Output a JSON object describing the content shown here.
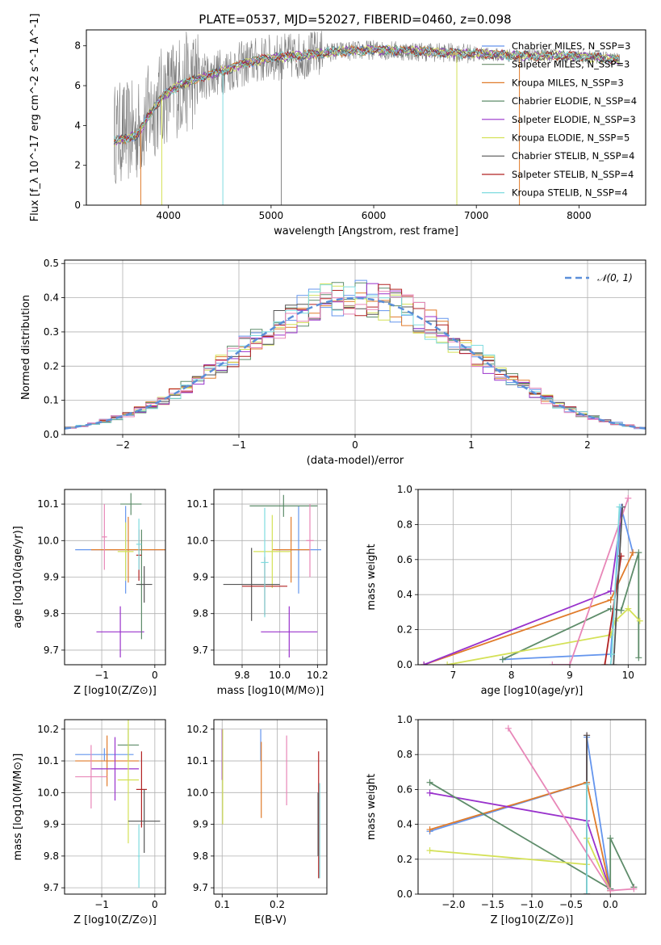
{
  "figure": {
    "title": "PLATE=0537, MJD=52027, FIBERID=0460, z=0.098"
  },
  "chart_data": [
    {
      "id": "spectrum",
      "type": "line",
      "xlabel": "wavelength [Angstrom, rest frame]",
      "ylabel": "Flux [f_λ 10^-17 erg cm^-2 s^-1 A^-1]",
      "xlim": [
        3200,
        8650
      ],
      "ylim": [
        0,
        8.8
      ],
      "xticks": [
        4000,
        5000,
        6000,
        7000,
        8000
      ],
      "yticks": [
        0,
        2,
        4,
        6,
        8
      ],
      "grid": false,
      "legend_position": "right",
      "legend": [
        {
          "label": "Chabrier MILES, N_SSP=3",
          "color": "#6495ED"
        },
        {
          "label": "Salpeter MILES, N_SSP=3",
          "color": "#6B8E6B"
        },
        {
          "label": "Kroupa MILES, N_SSP=3",
          "color": "#E07B2A"
        },
        {
          "label": "Chabrier ELODIE, N_SSP=4",
          "color": "#5E8C6A"
        },
        {
          "label": "Salpeter ELODIE, N_SSP=3",
          "color": "#9932CC"
        },
        {
          "label": "Kroupa ELODIE, N_SSP=5",
          "color": "#D4E157"
        },
        {
          "label": "Chabrier STELIB, N_SSP=4",
          "color": "#555555"
        },
        {
          "label": "Salpeter STELIB, N_SSP=4",
          "color": "#B22222"
        },
        {
          "label": "Kroupa STELIB, N_SSP=4",
          "color": "#7FDBDF"
        }
      ],
      "continuum": [
        [
          3450,
          3.6
        ],
        [
          3700,
          3.7
        ],
        [
          3800,
          4.5
        ],
        [
          3950,
          5.5
        ],
        [
          4100,
          6.0
        ],
        [
          4300,
          6.4
        ],
        [
          4500,
          6.7
        ],
        [
          4800,
          7.2
        ],
        [
          5000,
          7.4
        ],
        [
          5300,
          7.5
        ],
        [
          5600,
          7.7
        ],
        [
          6000,
          7.8
        ],
        [
          6500,
          7.7
        ],
        [
          7000,
          7.6
        ],
        [
          7400,
          7.5
        ],
        [
          7800,
          7.5
        ],
        [
          8200,
          7.4
        ],
        [
          8400,
          7.3
        ]
      ]
    },
    {
      "id": "residuals",
      "type": "bar",
      "xlabel": "(data-model)/error",
      "ylabel": "Normed distribution",
      "xlim": [
        -2.5,
        2.5
      ],
      "ylim": [
        0,
        0.51
      ],
      "xticks": [
        -2,
        -1,
        0,
        1,
        2
      ],
      "xtick_labels": [
        "−2",
        "−1",
        "0",
        "1",
        "2"
      ],
      "yticks": [
        0.0,
        0.1,
        0.2,
        0.3,
        0.4,
        0.5
      ],
      "ytick_labels": [
        "0.0",
        "0.1",
        "0.2",
        "0.3",
        "0.4",
        "0.5"
      ],
      "grid": true,
      "legend_position": "top-right",
      "legend": [
        {
          "label": "𝒩(0, 1)",
          "color": "#5B8FD9",
          "style": "dashed"
        }
      ],
      "bin_width": 0.1
    },
    {
      "id": "age-vs-Z",
      "type": "scatter",
      "xlabel": "Z [log10(Z/Z⊙)]",
      "ylabel": "age  [log10(age/yr)]",
      "xlim": [
        -1.7,
        0.2
      ],
      "ylim": [
        9.66,
        10.14
      ],
      "xticks": [
        -1,
        0
      ],
      "xtick_labels": [
        "−1",
        "0"
      ],
      "yticks": [
        9.7,
        9.8,
        9.9,
        10.0,
        10.1
      ],
      "ytick_labels": [
        "9.7",
        "9.8",
        "9.9",
        "10.0",
        "10.1"
      ],
      "grid": true,
      "points": [
        {
          "x": -0.55,
          "y": 9.975,
          "xerr": 0.95,
          "yerr": 0.12,
          "color": "#6495ED"
        },
        {
          "x": -0.5,
          "y": 9.975,
          "xerr": 0.7,
          "yerr": 0.09,
          "color": "#E07B2A"
        },
        {
          "x": -0.45,
          "y": 10.1,
          "xerr": 0.2,
          "yerr": 0.03,
          "color": "#5E8C6A"
        },
        {
          "x": -0.65,
          "y": 9.75,
          "xerr": 0.45,
          "yerr": 0.07,
          "color": "#9932CC"
        },
        {
          "x": -0.55,
          "y": 9.97,
          "xerr": 0.15,
          "yerr": 0.08,
          "color": "#D4E157"
        },
        {
          "x": -0.25,
          "y": 9.88,
          "xerr": 0.05,
          "yerr": 0.15,
          "color": "#5E8C6A"
        },
        {
          "x": -0.2,
          "y": 9.88,
          "xerr": 0.15,
          "yerr": 0.05,
          "color": "#555555"
        },
        {
          "x": -0.3,
          "y": 9.96,
          "xerr": 0.05,
          "yerr": 0.07,
          "color": "#B22222"
        },
        {
          "x": -0.3,
          "y": 9.99,
          "xerr": 0.05,
          "yerr": 0.07,
          "color": "#7FDBDF"
        },
        {
          "x": -0.95,
          "y": 10.01,
          "xerr": 0.05,
          "yerr": 0.09,
          "color": "#E887B8"
        }
      ]
    },
    {
      "id": "age-vs-mass",
      "type": "scatter",
      "xlabel": "mass [log10(M/M⊙)]",
      "ylabel": "",
      "xlim": [
        9.65,
        10.25
      ],
      "ylim": [
        9.66,
        10.14
      ],
      "xticks": [
        9.8,
        10.0,
        10.2
      ],
      "xtick_labels": [
        "9.8",
        "10.0",
        "10.2"
      ],
      "yticks": [
        9.7,
        9.8,
        9.9,
        10.0,
        10.1
      ],
      "ytick_labels": [
        "9.7",
        "9.8",
        "9.9",
        "10.0",
        "10.1"
      ],
      "grid": true,
      "points": [
        {
          "x": 10.1,
          "y": 9.975,
          "xerr": 0.12,
          "yerr": 0.12,
          "color": "#6495ED"
        },
        {
          "x": 10.06,
          "y": 9.975,
          "xerr": 0.1,
          "yerr": 0.09,
          "color": "#E07B2A"
        },
        {
          "x": 10.02,
          "y": 10.095,
          "xerr": 0.18,
          "yerr": 0.03,
          "color": "#5E8C6A"
        },
        {
          "x": 10.05,
          "y": 9.75,
          "xerr": 0.15,
          "yerr": 0.07,
          "color": "#9932CC"
        },
        {
          "x": 9.96,
          "y": 9.97,
          "xerr": 0.1,
          "yerr": 0.1,
          "color": "#D4E157"
        },
        {
          "x": 9.85,
          "y": 9.88,
          "xerr": 0.15,
          "yerr": 0.1,
          "color": "#555555"
        },
        {
          "x": 9.92,
          "y": 9.875,
          "xerr": 0.12,
          "yerr": 0.08,
          "color": "#B22222"
        },
        {
          "x": 9.92,
          "y": 9.94,
          "xerr": 0.02,
          "yerr": 0.15,
          "color": "#7FDBDF"
        },
        {
          "x": 10.16,
          "y": 10.0,
          "xerr": 0.02,
          "yerr": 0.1,
          "color": "#E887B8"
        }
      ]
    },
    {
      "id": "massweight-vs-age",
      "type": "line",
      "xlabel": "age  [log10(age/yr)]",
      "ylabel": "mass weight",
      "xlim": [
        6.4,
        10.3
      ],
      "ylim": [
        0,
        1.0
      ],
      "xticks": [
        7,
        8,
        9,
        10
      ],
      "yticks": [
        0.0,
        0.2,
        0.4,
        0.6,
        0.8,
        1.0
      ],
      "ytick_labels": [
        "0.0",
        "0.2",
        "0.4",
        "0.6",
        "0.8",
        "1.0"
      ],
      "grid": true,
      "series": [
        {
          "color": "#6495ED",
          "x": [
            7.85,
            9.7,
            9.88,
            10.08
          ],
          "y": [
            0.03,
            0.06,
            0.9,
            0.64
          ]
        },
        {
          "color": "#E07B2A",
          "x": [
            6.5,
            9.7,
            10.08
          ],
          "y": [
            0.0,
            0.37,
            0.64
          ]
        },
        {
          "color": "#9932CC",
          "x": [
            6.5,
            9.7,
            9.9
          ],
          "y": [
            0.0,
            0.42,
            0.9
          ]
        },
        {
          "color": "#5E8C6A",
          "x": [
            7.85,
            9.7,
            9.88,
            10.18,
            10.18
          ],
          "y": [
            0.03,
            0.32,
            0.31,
            0.64,
            0.04
          ]
        },
        {
          "color": "#D4E157",
          "x": [
            6.9,
            9.7,
            9.78,
            10.0,
            10.2
          ],
          "y": [
            0.0,
            0.17,
            0.25,
            0.32,
            0.25
          ]
        },
        {
          "color": "#E887B8",
          "x": [
            8.7,
            9.0,
            10.0
          ],
          "y": [
            0.0,
            0.0,
            0.95
          ]
        },
        {
          "color": "#B22222",
          "x": [
            9.6,
            9.88
          ],
          "y": [
            0.0,
            0.62
          ]
        },
        {
          "color": "#555555",
          "x": [
            9.75,
            9.9
          ],
          "y": [
            0.0,
            0.9
          ]
        },
        {
          "color": "#7FDBDF",
          "x": [
            9.7,
            9.72,
            9.85
          ],
          "y": [
            0.0,
            0.06,
            0.9
          ]
        }
      ]
    },
    {
      "id": "mass-vs-Z",
      "type": "scatter",
      "xlabel": "Z [log10(Z/Z⊙)]",
      "ylabel": "mass [log10(M/M⊙)]",
      "xlim": [
        -1.7,
        0.2
      ],
      "ylim": [
        9.68,
        10.23
      ],
      "xticks": [
        -1,
        0
      ],
      "xtick_labels": [
        "−1",
        "0"
      ],
      "yticks": [
        9.7,
        9.8,
        9.9,
        10.0,
        10.1,
        10.2
      ],
      "ytick_labels": [
        "9.7",
        "9.8",
        "9.9",
        "10.0",
        "10.1",
        "10.2"
      ],
      "grid": true,
      "points": [
        {
          "x": -0.95,
          "y": 10.12,
          "xerr": 0.55,
          "yerr": 0.02,
          "color": "#6495ED"
        },
        {
          "x": -0.9,
          "y": 10.1,
          "xerr": 0.6,
          "yerr": 0.08,
          "color": "#E07B2A"
        },
        {
          "x": -0.5,
          "y": 10.15,
          "xerr": 0.2,
          "yerr": 0.05,
          "color": "#5E8C6A"
        },
        {
          "x": -0.75,
          "y": 10.075,
          "xerr": 0.45,
          "yerr": 0.1,
          "color": "#9932CC"
        },
        {
          "x": -0.5,
          "y": 10.04,
          "xerr": 0.2,
          "yerr": 0.2,
          "color": "#D4E157"
        },
        {
          "x": -1.2,
          "y": 10.05,
          "xerr": 0.3,
          "yerr": 0.1,
          "color": "#E887B8"
        },
        {
          "x": -0.25,
          "y": 10.01,
          "xerr": 0.1,
          "yerr": 0.12,
          "color": "#B22222"
        },
        {
          "x": -0.2,
          "y": 9.91,
          "xerr": 0.3,
          "yerr": 0.1,
          "color": "#555555"
        },
        {
          "x": -0.3,
          "y": 9.8,
          "xerr": 0.02,
          "yerr": 0.1,
          "color": "#7FDBDF"
        }
      ]
    },
    {
      "id": "mass-vs-EBV",
      "type": "scatter",
      "xlabel": "E(B-V)",
      "ylabel": "",
      "xlim": [
        0.085,
        0.29
      ],
      "ylim": [
        9.68,
        10.23
      ],
      "xticks": [
        0.1,
        0.2
      ],
      "xtick_labels": [
        "0.1",
        "0.2"
      ],
      "yticks": [
        9.7,
        9.8,
        9.9,
        10.0,
        10.1,
        10.2
      ],
      "ytick_labels": [
        "9.7",
        "9.8",
        "9.9",
        "10.0",
        "10.1",
        "10.2"
      ],
      "grid": true,
      "points": [
        {
          "x": 0.1,
          "y": 10.12,
          "xerr": 0,
          "yerr": 0.08,
          "color": "#9932CC"
        },
        {
          "x": 0.101,
          "y": 10.05,
          "xerr": 0,
          "yerr": 0.15,
          "color": "#D4E157"
        },
        {
          "x": 0.17,
          "y": 10.15,
          "xerr": 0,
          "yerr": 0.05,
          "color": "#6495ED"
        },
        {
          "x": 0.171,
          "y": 10.04,
          "xerr": 0,
          "yerr": 0.12,
          "color": "#E07B2A"
        },
        {
          "x": 0.217,
          "y": 10.07,
          "xerr": 0,
          "yerr": 0.11,
          "color": "#E887B8"
        },
        {
          "x": 0.275,
          "y": 9.93,
          "xerr": 0,
          "yerr": 0.2,
          "color": "#B22222"
        },
        {
          "x": 0.277,
          "y": 9.88,
          "xerr": 0,
          "yerr": 0.15,
          "color": "#7FDBDF"
        },
        {
          "x": 0.274,
          "y": 9.9,
          "xerr": 0,
          "yerr": 0.1,
          "color": "#555555"
        }
      ]
    },
    {
      "id": "massweight-vs-Z",
      "type": "line",
      "xlabel": "Z [log10(Z/Z⊙)]",
      "ylabel": "mass weight",
      "xlim": [
        -2.45,
        0.45
      ],
      "ylim": [
        0,
        1.0
      ],
      "xticks": [
        -2.0,
        -1.5,
        -1.0,
        -0.5,
        0.0
      ],
      "xtick_labels": [
        "−2.0",
        "−1.5",
        "−1.0",
        "−0.5",
        "0.0"
      ],
      "yticks": [
        0.0,
        0.2,
        0.4,
        0.6,
        0.8,
        1.0
      ],
      "ytick_labels": [
        "0.0",
        "0.2",
        "0.4",
        "0.6",
        "0.8",
        "1.0"
      ],
      "grid": true,
      "series": [
        {
          "color": "#6495ED",
          "x": [
            -2.3,
            -0.3,
            -0.3,
            0.0
          ],
          "y": [
            0.36,
            0.64,
            0.9,
            0.03
          ]
        },
        {
          "color": "#E07B2A",
          "x": [
            -2.3,
            -0.3,
            0.0
          ],
          "y": [
            0.37,
            0.64,
            0.02
          ]
        },
        {
          "color": "#9932CC",
          "x": [
            -2.3,
            -0.3,
            0.0
          ],
          "y": [
            0.58,
            0.42,
            0.02
          ]
        },
        {
          "color": "#5E8C6A",
          "x": [
            -2.3,
            0.0,
            0.0,
            0.3
          ],
          "y": [
            0.64,
            0.03,
            0.32,
            0.04
          ]
        },
        {
          "color": "#D4E157",
          "x": [
            -2.3,
            -0.3,
            -0.3,
            0.0
          ],
          "y": [
            0.25,
            0.17,
            0.32,
            0.02
          ]
        },
        {
          "color": "#E887B8",
          "x": [
            -1.3,
            0.0,
            0.3
          ],
          "y": [
            0.95,
            0.02,
            0.03
          ]
        },
        {
          "color": "#B22222",
          "x": [
            -0.3,
            -0.3
          ],
          "y": [
            0.91,
            0.0
          ]
        },
        {
          "color": "#555555",
          "x": [
            -0.3,
            -0.3
          ],
          "y": [
            0.91,
            0.0
          ]
        },
        {
          "color": "#7FDBDF",
          "x": [
            -0.3,
            -0.3
          ],
          "y": [
            0.63,
            0.0
          ]
        }
      ]
    }
  ]
}
